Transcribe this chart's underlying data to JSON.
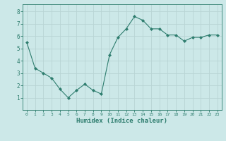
{
  "x": [
    0,
    1,
    2,
    3,
    4,
    5,
    6,
    7,
    8,
    9,
    10,
    11,
    12,
    13,
    14,
    15,
    16,
    17,
    18,
    19,
    20,
    21,
    22,
    23
  ],
  "y": [
    5.5,
    3.4,
    3.0,
    2.6,
    1.7,
    1.0,
    1.6,
    2.1,
    1.6,
    1.3,
    4.5,
    5.9,
    6.6,
    7.6,
    7.3,
    6.6,
    6.6,
    6.1,
    6.1,
    5.6,
    5.9,
    5.9,
    6.1,
    6.1
  ],
  "xlabel": "Humidex (Indice chaleur)",
  "line_color": "#2e7d6e",
  "bg_color": "#cce8e8",
  "grid_color": "#b8d4d4",
  "tick_label_color": "#2e7d6e",
  "xlim": [
    -0.5,
    23.5
  ],
  "ylim": [
    0,
    8.6
  ],
  "yticks": [
    1,
    2,
    3,
    4,
    5,
    6,
    7,
    8
  ],
  "xticks": [
    0,
    1,
    2,
    3,
    4,
    5,
    6,
    7,
    8,
    9,
    10,
    11,
    12,
    13,
    14,
    15,
    16,
    17,
    18,
    19,
    20,
    21,
    22,
    23
  ],
  "xtick_labels": [
    "0",
    "1",
    "2",
    "3",
    "4",
    "5",
    "6",
    "7",
    "8",
    "9",
    "10",
    "11",
    "12",
    "13",
    "14",
    "15",
    "16",
    "17",
    "18",
    "19",
    "20",
    "21",
    "22",
    "23"
  ]
}
